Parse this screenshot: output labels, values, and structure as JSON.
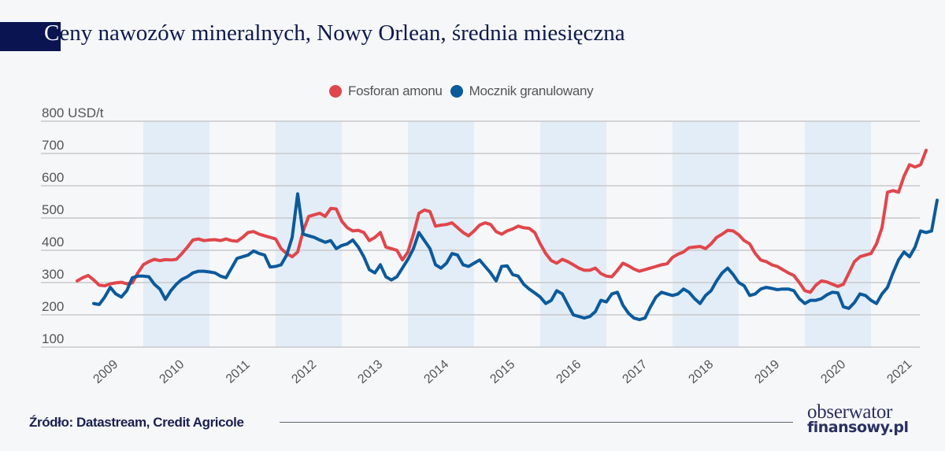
{
  "title": {
    "first_letter": "C",
    "rest": "eny nawozów mineralnych, Nowy Orlean, średnia miesięczna"
  },
  "footer": {
    "source": "Źródło: Datastream, Credit Agricole",
    "logo_line1": "obserwator",
    "logo_line2": "finansowy.pl"
  },
  "colors": {
    "fosforan": "#e0464b",
    "mocznik": "#0b5a9c",
    "band": "#e3edf7",
    "title_block": "#0a1450"
  },
  "chart_data": {
    "type": "line",
    "title": "Ceny nawozów mineralnych, Nowy Orlean, średnia miesięczna",
    "xlabel": "",
    "ylabel": "USD/t",
    "ylim": [
      100,
      800
    ],
    "yticks": [
      100,
      200,
      300,
      400,
      500,
      600,
      700,
      800
    ],
    "ytick_labels": [
      "100",
      "200",
      "300",
      "400",
      "500",
      "600",
      "700",
      "800 USD/t"
    ],
    "xlim": [
      2008.0,
      2021.8
    ],
    "xticks": [
      2009,
      2010,
      2011,
      2012,
      2013,
      2014,
      2015,
      2016,
      2017,
      2018,
      2019,
      2020,
      2021
    ],
    "shaded_years": [
      2010,
      2012,
      2014,
      2016,
      2018,
      2020
    ],
    "grid": true,
    "legend_position": "top-center",
    "frequency": "monthly",
    "series": [
      {
        "name": "Fosforan amonu",
        "start": 2009.0,
        "values": [
          305,
          315,
          322,
          308,
          292,
          290,
          296,
          299,
          301,
          296,
          299,
          330,
          355,
          365,
          372,
          368,
          371,
          370,
          372,
          390,
          410,
          432,
          435,
          430,
          432,
          433,
          430,
          435,
          430,
          428,
          440,
          455,
          458,
          450,
          445,
          440,
          435,
          405,
          390,
          380,
          395,
          460,
          505,
          510,
          515,
          505,
          530,
          528,
          490,
          470,
          460,
          462,
          455,
          430,
          440,
          455,
          410,
          405,
          400,
          370,
          395,
          450,
          515,
          525,
          520,
          475,
          478,
          480,
          485,
          470,
          455,
          445,
          460,
          478,
          485,
          480,
          458,
          450,
          460,
          466,
          475,
          470,
          468,
          455,
          420,
          390,
          368,
          360,
          372,
          365,
          355,
          345,
          338,
          338,
          345,
          328,
          320,
          318,
          338,
          360,
          352,
          342,
          335,
          340,
          345,
          350,
          355,
          358,
          378,
          388,
          395,
          408,
          410,
          412,
          405,
          420,
          440,
          450,
          462,
          460,
          448,
          430,
          420,
          390,
          370,
          365,
          355,
          350,
          340,
          330,
          322,
          300,
          275,
          270,
          292,
          305,
          302,
          295,
          288,
          295,
          330,
          365,
          380,
          385,
          390,
          420,
          470,
          580,
          585,
          580,
          630,
          665,
          658,
          665,
          710
        ]
      },
      {
        "name": "Mocznik granulowany",
        "start": 2009.25,
        "values": [
          235,
          232,
          255,
          285,
          265,
          255,
          275,
          315,
          320,
          320,
          318,
          295,
          280,
          248,
          275,
          295,
          310,
          318,
          330,
          335,
          335,
          333,
          330,
          320,
          315,
          345,
          375,
          380,
          385,
          398,
          390,
          385,
          348,
          350,
          355,
          385,
          440,
          575,
          450,
          445,
          440,
          432,
          425,
          430,
          405,
          415,
          420,
          432,
          410,
          380,
          340,
          330,
          355,
          318,
          308,
          318,
          345,
          372,
          405,
          455,
          430,
          405,
          355,
          345,
          360,
          390,
          385,
          355,
          350,
          360,
          370,
          350,
          330,
          305,
          350,
          352,
          325,
          320,
          295,
          280,
          268,
          255,
          235,
          245,
          275,
          265,
          232,
          200,
          195,
          190,
          195,
          210,
          245,
          240,
          265,
          270,
          230,
          205,
          190,
          185,
          190,
          225,
          255,
          270,
          265,
          260,
          265,
          280,
          270,
          250,
          235,
          260,
          275,
          305,
          330,
          345,
          325,
          300,
          290,
          260,
          265,
          280,
          285,
          282,
          278,
          280,
          280,
          275,
          250,
          235,
          245,
          245,
          250,
          262,
          270,
          268,
          225,
          220,
          238,
          265,
          260,
          245,
          235,
          265,
          285,
          330,
          370,
          395,
          380,
          410,
          460,
          455,
          460,
          555
        ]
      }
    ]
  }
}
